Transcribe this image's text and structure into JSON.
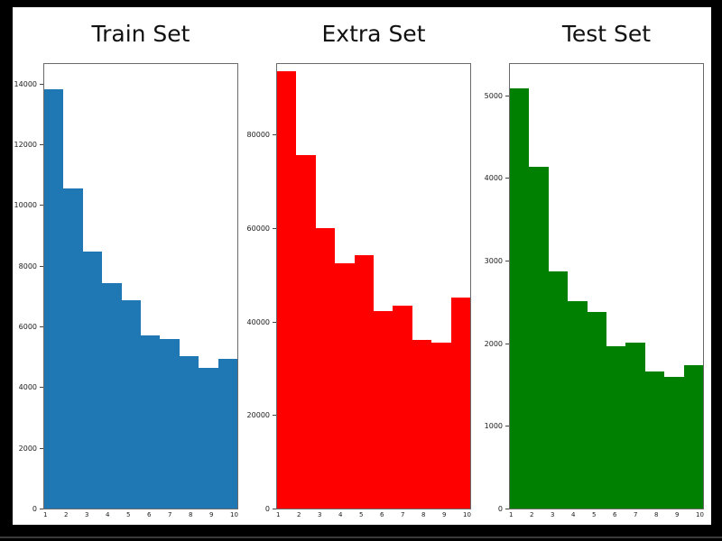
{
  "figure": {
    "background_color": "#000000",
    "panel_color": "#ffffff"
  },
  "chart_data": [
    {
      "type": "bar",
      "title": "Train Set",
      "color": "#1f77b4",
      "categories": [
        "1",
        "2",
        "3",
        "4",
        "5",
        "6",
        "7",
        "8",
        "9",
        "10"
      ],
      "values": [
        13861,
        10585,
        8497,
        7458,
        6882,
        5727,
        5595,
        5045,
        4659,
        4948
      ],
      "xlabel": "",
      "ylabel": "",
      "ylim": [
        0,
        14700
      ],
      "yticks": [
        0,
        2000,
        4000,
        6000,
        8000,
        10000,
        12000,
        14000
      ],
      "grid": false,
      "legend": "none"
    },
    {
      "type": "bar",
      "title": "Extra Set",
      "color": "#ff0000",
      "categories": [
        "1",
        "2",
        "3",
        "4",
        "5",
        "6",
        "7",
        "8",
        "9",
        "10"
      ],
      "values": [
        94000,
        76000,
        60300,
        52700,
        54400,
        42500,
        43600,
        36200,
        35600,
        45400
      ],
      "xlabel": "",
      "ylabel": "",
      "ylim": [
        0,
        95500
      ],
      "yticks": [
        0,
        20000,
        40000,
        60000,
        80000
      ],
      "grid": false,
      "legend": "none"
    },
    {
      "type": "bar",
      "title": "Test Set",
      "color": "#008000",
      "categories": [
        "1",
        "2",
        "3",
        "4",
        "5",
        "6",
        "7",
        "8",
        "9",
        "10"
      ],
      "values": [
        5099,
        4149,
        2882,
        2523,
        2384,
        1977,
        2019,
        1660,
        1595,
        1744
      ],
      "xlabel": "",
      "ylabel": "",
      "ylim": [
        0,
        5400
      ],
      "yticks": [
        0,
        1000,
        2000,
        3000,
        4000,
        5000
      ],
      "grid": false,
      "legend": "none"
    }
  ]
}
